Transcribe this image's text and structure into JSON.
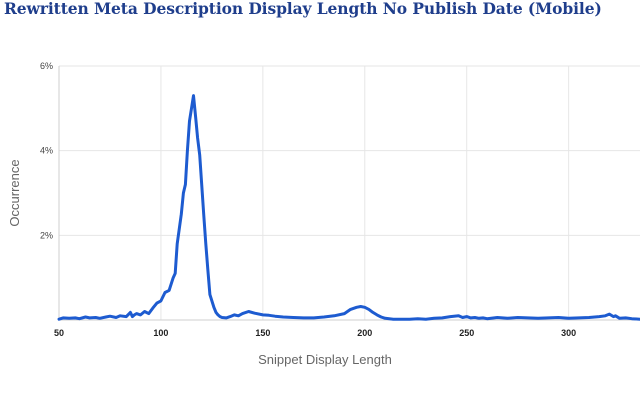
{
  "chart_data": {
    "type": "line",
    "title": "Rewritten Meta Description Display Length No Publish Date (Mobile)",
    "xlabel": "Snippet Display Length",
    "ylabel": "Occurrence",
    "xlim": [
      50,
      335
    ],
    "ylim": [
      0,
      6
    ],
    "xticks": [
      50,
      100,
      150,
      200,
      250,
      300
    ],
    "xtick_labels": [
      "50",
      "100",
      "150",
      "200",
      "250",
      "300"
    ],
    "yticks": [
      2,
      4,
      6
    ],
    "ytick_labels": [
      "2%",
      "4%",
      "6%"
    ],
    "grid": true,
    "color": "#1d5bd0",
    "series": [
      {
        "x": [
          50,
          52,
          55,
          58,
          60,
          63,
          65,
          68,
          70,
          73,
          75,
          78,
          80,
          83,
          85,
          86,
          87,
          88,
          90,
          92,
          94,
          96,
          98,
          100,
          102,
          104,
          106,
          107,
          108,
          110,
          111,
          112,
          113,
          114,
          115,
          116,
          117,
          118,
          119,
          120,
          121,
          122,
          123,
          124,
          125,
          126,
          127,
          128,
          129,
          130,
          132,
          134,
          136,
          138,
          140,
          143,
          146,
          150,
          153,
          156,
          160,
          165,
          170,
          175,
          180,
          185,
          190,
          193,
          196,
          198,
          200,
          202,
          204,
          206,
          208,
          210,
          214,
          218,
          222,
          226,
          230,
          234,
          238,
          242,
          246,
          248,
          250,
          252,
          254,
          256,
          258,
          260,
          265,
          270,
          275,
          280,
          285,
          290,
          295,
          300,
          305,
          310,
          315,
          318,
          320,
          322,
          323,
          325,
          328,
          331,
          335
        ],
        "y": [
          0.02,
          0.05,
          0.04,
          0.05,
          0.03,
          0.07,
          0.05,
          0.06,
          0.04,
          0.07,
          0.09,
          0.06,
          0.1,
          0.08,
          0.18,
          0.08,
          0.12,
          0.15,
          0.12,
          0.2,
          0.15,
          0.28,
          0.4,
          0.45,
          0.65,
          0.7,
          1.0,
          1.1,
          1.8,
          2.5,
          3.0,
          3.2,
          4.0,
          4.7,
          5.0,
          5.3,
          4.8,
          4.3,
          3.9,
          3.2,
          2.5,
          1.8,
          1.2,
          0.6,
          0.45,
          0.3,
          0.18,
          0.12,
          0.08,
          0.06,
          0.05,
          0.08,
          0.12,
          0.1,
          0.15,
          0.2,
          0.16,
          0.12,
          0.11,
          0.09,
          0.07,
          0.06,
          0.05,
          0.05,
          0.07,
          0.1,
          0.15,
          0.25,
          0.3,
          0.32,
          0.3,
          0.25,
          0.18,
          0.12,
          0.07,
          0.04,
          0.02,
          0.02,
          0.02,
          0.03,
          0.02,
          0.04,
          0.05,
          0.08,
          0.1,
          0.06,
          0.08,
          0.05,
          0.06,
          0.04,
          0.05,
          0.03,
          0.06,
          0.04,
          0.06,
          0.05,
          0.04,
          0.05,
          0.06,
          0.04,
          0.05,
          0.06,
          0.08,
          0.1,
          0.14,
          0.08,
          0.1,
          0.04,
          0.05,
          0.03,
          0.02
        ]
      }
    ]
  }
}
